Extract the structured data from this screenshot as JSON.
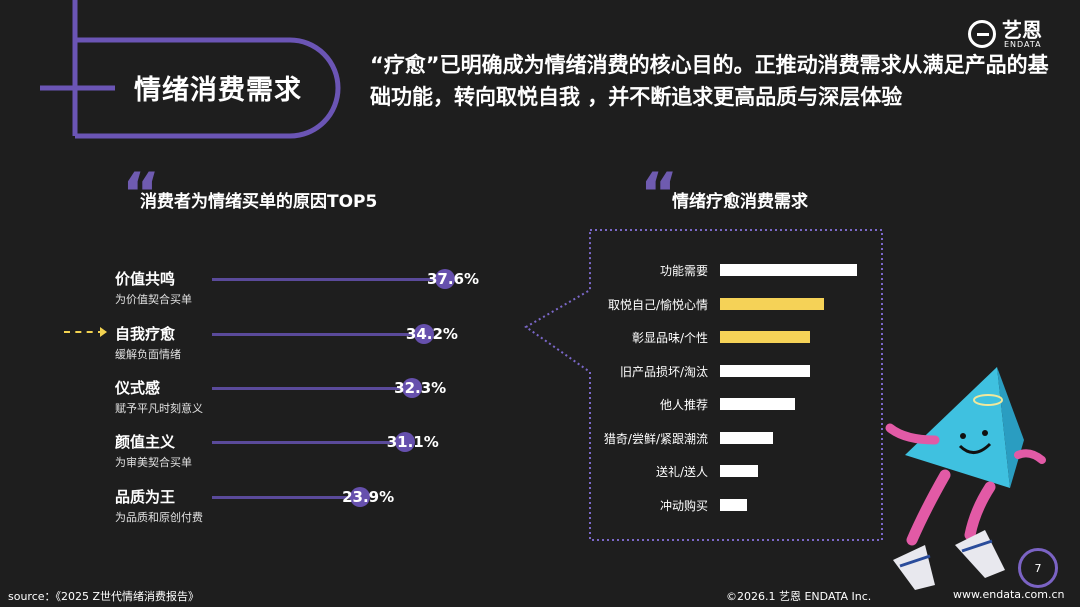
{
  "header": {
    "section_title": "情绪消费需求",
    "headline": "“疗愈”已明确成为情绪消费的核心目的。正推动消费需求从满足产品的基础功能，转向取悦自我 ，并不断追求更高品质与深层体验",
    "logo_cn": "艺恩",
    "logo_en": "ENDATA"
  },
  "left_section": {
    "quote": "“",
    "title": "消费者为情绪买单的原因TOP5"
  },
  "right_section": {
    "quote": "“",
    "title": "情绪疗愈消费需求"
  },
  "chart_data": [
    {
      "type": "bar",
      "orientation": "horizontal",
      "title": "消费者为情绪买单的原因TOP5",
      "categories": [
        "价值共鸣",
        "自我疗愈",
        "仪式感",
        "颜值主义",
        "品质为王"
      ],
      "subtitles": [
        "为价值契合买单",
        "缓解负面情绪",
        "赋予平凡时刻意义",
        "为审美契合买单",
        "为品质和原创付费"
      ],
      "values": [
        37.6,
        34.2,
        32.3,
        31.1,
        23.9
      ],
      "value_labels": [
        "37.6%",
        "34.2%",
        "32.3%",
        "31.1%",
        "23.9%"
      ],
      "highlight": "自我疗愈",
      "colors": {
        "line": "#5a4a9a",
        "dot": "#6650ad",
        "highlight_arrow": "#f2d250"
      }
    },
    {
      "type": "bar",
      "orientation": "horizontal",
      "title": "情绪疗愈消费需求",
      "categories": [
        "功能需要",
        "取悦自己/愉悦心情",
        "彰显品味/个性",
        "旧产品损坏/淘汰",
        "他人推荐",
        "猎奇/尝鲜/紧跟潮流",
        "送礼/送人",
        "冲动购买"
      ],
      "values": [
        100,
        76,
        66,
        66,
        55,
        39,
        28,
        20
      ],
      "highlighted": [
        "取悦自己/愉悦心情",
        "彰显品味/个性"
      ],
      "colors": {
        "default": "#ffffff",
        "highlight": "#f5d257"
      }
    }
  ],
  "footer": {
    "source": "source：《2025 Z世代情绪消费报告》",
    "copyright": "©2026.1  艺恩 ENDATA Inc.",
    "website": "www.endata.com.cn",
    "page": "7"
  }
}
